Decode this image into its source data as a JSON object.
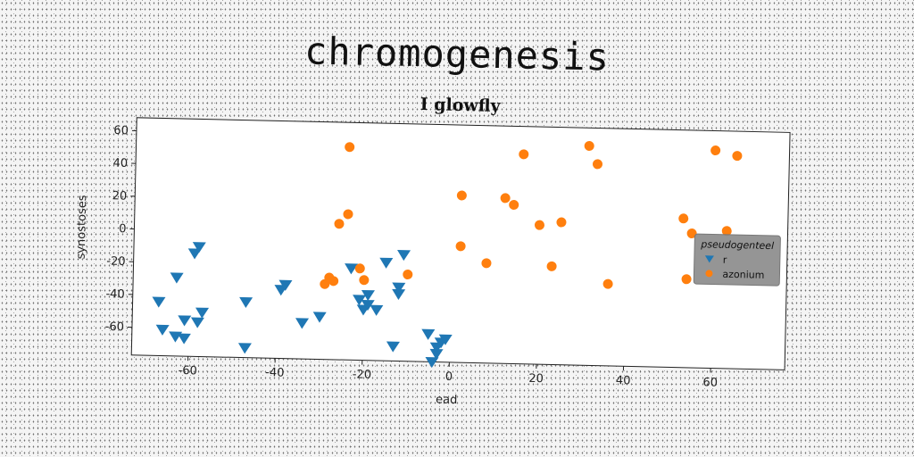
{
  "figure_title": "chromogenesis",
  "chart_data": {
    "type": "scatter",
    "title": "I glowfly",
    "xlabel": "ead",
    "ylabel": "synostoses",
    "xlim": [
      -73,
      77
    ],
    "ylim": [
      -77,
      68
    ],
    "xticks": [
      "-60",
      "-40",
      "-20",
      "0",
      "20",
      "40",
      "60"
    ],
    "yticks": [
      "60",
      "40",
      "20",
      "0",
      "-20",
      "-40",
      "-60"
    ],
    "grid": false,
    "legend": {
      "title": "pseudogenteel",
      "placement": "right"
    },
    "series": [
      {
        "name": "r",
        "marker": "triangle-down",
        "color": "#1f77b4",
        "points": [
          [
            -67,
            -44
          ],
          [
            -66,
            -61
          ],
          [
            -63,
            -65
          ],
          [
            -61,
            -66
          ],
          [
            -59,
            -14
          ],
          [
            -58,
            -10
          ],
          [
            -58,
            -56
          ],
          [
            -57,
            -50
          ],
          [
            -61,
            -55
          ],
          [
            -63,
            -29
          ],
          [
            -47,
            -43
          ],
          [
            -47,
            -71
          ],
          [
            -39,
            -35
          ],
          [
            -38,
            -32
          ],
          [
            -34,
            -55
          ],
          [
            -30,
            -51
          ],
          [
            -23,
            -21
          ],
          [
            -21,
            -40
          ],
          [
            -20,
            -46
          ],
          [
            -19,
            -37
          ],
          [
            -19,
            -43
          ],
          [
            -17,
            -46
          ],
          [
            -15,
            -17
          ],
          [
            -13,
            -68
          ],
          [
            -12,
            -36
          ],
          [
            -12,
            -32
          ],
          [
            -11,
            -12
          ],
          [
            -5,
            -60
          ],
          [
            -4,
            -77
          ],
          [
            -3,
            -72
          ],
          [
            -3,
            -68
          ],
          [
            -2,
            -65
          ],
          [
            -1,
            -63
          ]
        ]
      },
      {
        "name": "azonium",
        "marker": "circle",
        "color": "#ff7f0e",
        "points": [
          [
            -24,
            53
          ],
          [
            -26,
            6
          ],
          [
            -24,
            12
          ],
          [
            -29,
            -31
          ],
          [
            -28,
            -27
          ],
          [
            -27,
            -29
          ],
          [
            -21,
            -21
          ],
          [
            -20,
            -28
          ],
          [
            -10,
            -24
          ],
          [
            2,
            -6
          ],
          [
            2,
            25
          ],
          [
            8,
            -16
          ],
          [
            12,
            24
          ],
          [
            14,
            20
          ],
          [
            16,
            51
          ],
          [
            20,
            8
          ],
          [
            23,
            -17
          ],
          [
            25,
            10
          ],
          [
            31,
            57
          ],
          [
            33,
            46
          ],
          [
            36,
            -27
          ],
          [
            53,
            14
          ],
          [
            54,
            -23
          ],
          [
            55,
            5
          ],
          [
            60,
            56
          ],
          [
            63,
            7
          ],
          [
            65,
            53
          ]
        ]
      }
    ]
  }
}
